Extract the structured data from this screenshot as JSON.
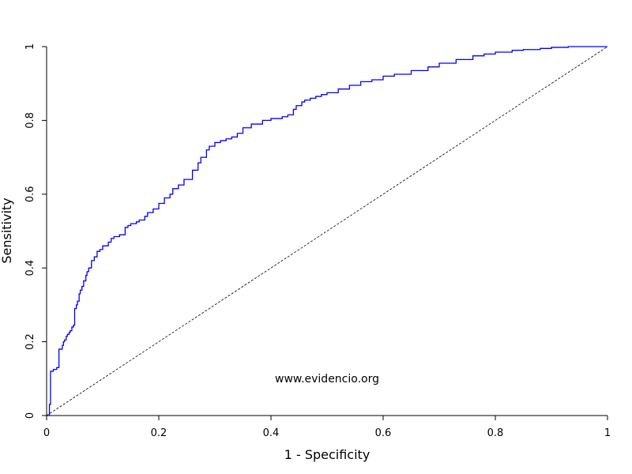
{
  "chart_data": {
    "type": "line",
    "title": "",
    "xlabel": "1 - Specificity",
    "ylabel": "Sensitivity",
    "xlim": [
      0,
      1
    ],
    "ylim": [
      0,
      1
    ],
    "x_ticks": [
      "0",
      "0.2",
      "0.4",
      "0.6",
      "0.8",
      "1"
    ],
    "y_ticks": [
      "0",
      "0.2",
      "0.4",
      "0.6",
      "0.8",
      "1"
    ],
    "grid": false,
    "legend": "none",
    "annotation": "www.evidencio.org",
    "series": [
      {
        "color": "#0000ff",
        "x": [
          0,
          0.005,
          0.005,
          0.007,
          0.007,
          0.012,
          0.018,
          0.022,
          0.022,
          0.028,
          0.03,
          0.032,
          0.035,
          0.037,
          0.04,
          0.042,
          0.045,
          0.048,
          0.05,
          0.05,
          0.053,
          0.055,
          0.058,
          0.06,
          0.063,
          0.066,
          0.07,
          0.072,
          0.075,
          0.08,
          0.085,
          0.09,
          0.095,
          0.1,
          0.11,
          0.115,
          0.12,
          0.13,
          0.14,
          0.145,
          0.15,
          0.16,
          0.165,
          0.175,
          0.18,
          0.19,
          0.2,
          0.21,
          0.22,
          0.225,
          0.235,
          0.245,
          0.26,
          0.27,
          0.275,
          0.285,
          0.29,
          0.3,
          0.31,
          0.32,
          0.33,
          0.34,
          0.35,
          0.365,
          0.385,
          0.4,
          0.42,
          0.43,
          0.44,
          0.445,
          0.455,
          0.46,
          0.47,
          0.48,
          0.49,
          0.5,
          0.52,
          0.54,
          0.56,
          0.58,
          0.6,
          0.62,
          0.65,
          0.68,
          0.7,
          0.73,
          0.76,
          0.78,
          0.8,
          0.83,
          0.85,
          0.88,
          0.9,
          0.93
        ],
        "y": [
          0,
          0,
          0.03,
          0.03,
          0.12,
          0.125,
          0.13,
          0.14,
          0.18,
          0.19,
          0.2,
          0.205,
          0.215,
          0.22,
          0.225,
          0.23,
          0.24,
          0.245,
          0.25,
          0.29,
          0.3,
          0.31,
          0.33,
          0.34,
          0.35,
          0.365,
          0.38,
          0.39,
          0.4,
          0.42,
          0.43,
          0.445,
          0.45,
          0.46,
          0.47,
          0.48,
          0.485,
          0.49,
          0.51,
          0.515,
          0.52,
          0.525,
          0.53,
          0.54,
          0.55,
          0.56,
          0.575,
          0.59,
          0.6,
          0.615,
          0.625,
          0.64,
          0.665,
          0.685,
          0.7,
          0.72,
          0.73,
          0.74,
          0.745,
          0.75,
          0.755,
          0.765,
          0.78,
          0.79,
          0.8,
          0.805,
          0.81,
          0.815,
          0.83,
          0.84,
          0.85,
          0.855,
          0.86,
          0.865,
          0.87,
          0.875,
          0.885,
          0.895,
          0.905,
          0.91,
          0.92,
          0.925,
          0.935,
          0.945,
          0.955,
          0.965,
          0.975,
          0.98,
          0.985,
          0.99,
          0.992,
          0.995,
          0.998,
          1.0
        ]
      },
      {
        "color": "#000000",
        "line_style": "dashed",
        "x": [
          0,
          1
        ],
        "y": [
          0,
          1
        ]
      }
    ]
  }
}
